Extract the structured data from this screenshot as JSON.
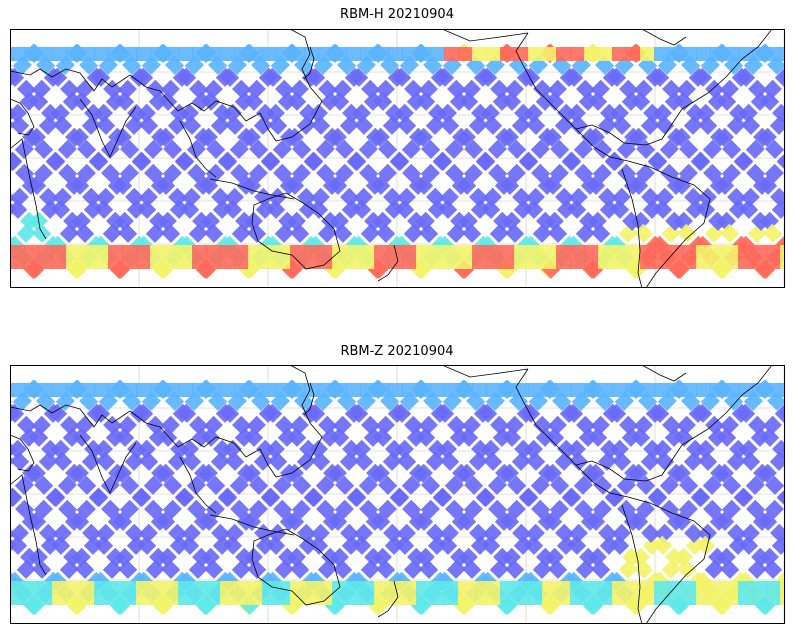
{
  "panels": [
    {
      "title": "RBM-H 20210904",
      "cmap": "jet-like",
      "gridlines": true,
      "coastlines": true
    },
    {
      "title": "RBM-Z 20210904",
      "cmap": "jet-like",
      "gridlines": true,
      "coastlines": true
    }
  ],
  "colors": {
    "low": "#6a6af8",
    "mid_low": "#5ab4ff",
    "mid": "#5fe8e8",
    "mid_high": "#f3f36a",
    "high": "#ff6a5a",
    "coast": "#000000",
    "grid": "#c8c8c8"
  }
}
